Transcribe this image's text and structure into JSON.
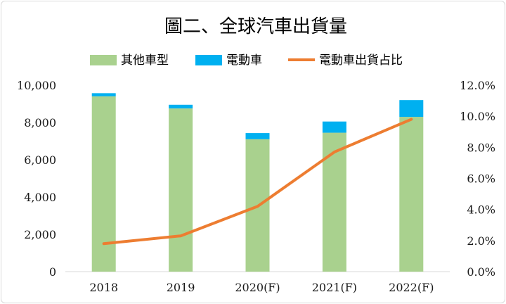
{
  "chart_data": {
    "type": "bar",
    "title": "圖二、全球汽車出貨量",
    "categories": [
      "2018",
      "2019",
      "2020(F)",
      "2021(F)",
      "2022(F)"
    ],
    "series": [
      {
        "name": "其他車型",
        "kind": "bar",
        "axis": "left",
        "color": "#a9d18e",
        "values": [
          9400,
          8750,
          7100,
          7450,
          8300
        ]
      },
      {
        "name": "電動車",
        "kind": "bar",
        "axis": "left",
        "color": "#00b0f0",
        "values": [
          170,
          200,
          330,
          600,
          900
        ]
      },
      {
        "name": "電動車出貨占比",
        "kind": "line",
        "axis": "right",
        "color": "#ed7d31",
        "values": [
          1.8,
          2.3,
          4.2,
          7.7,
          9.8
        ]
      }
    ],
    "y_left": {
      "min": 0,
      "max": 10000,
      "ticks": [
        0,
        2000,
        4000,
        6000,
        8000,
        10000
      ],
      "tick_labels": [
        "0",
        "2,000",
        "4,000",
        "6,000",
        "8,000",
        "10,000"
      ]
    },
    "y_right": {
      "min": 0,
      "max": 12,
      "ticks": [
        0,
        2,
        4,
        6,
        8,
        10,
        12
      ],
      "tick_labels": [
        "0.0%",
        "2.0%",
        "4.0%",
        "6.0%",
        "8.0%",
        "10.0%",
        "12.0%"
      ]
    },
    "legend_position": "top-center",
    "grid": false
  }
}
